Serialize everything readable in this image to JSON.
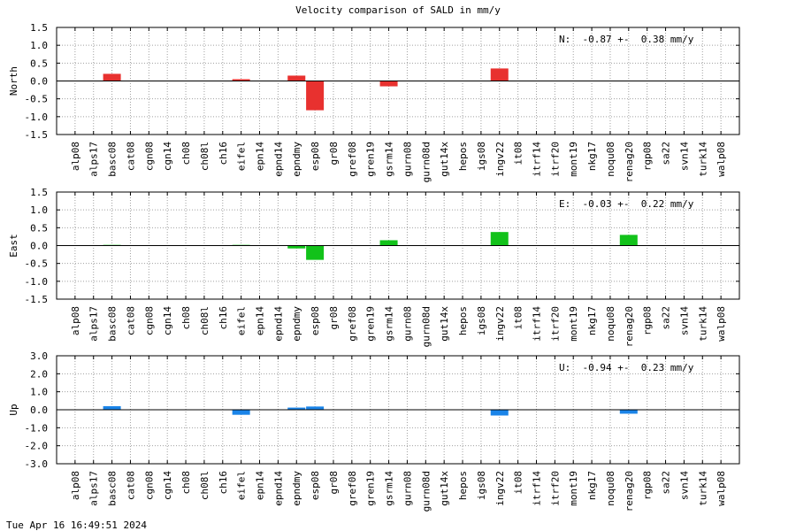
{
  "title": "Velocity comparison of SALD in mm/y",
  "timestamp": "Tue Apr 16 16:49:51 2024",
  "colors": {
    "North": "#e8312f",
    "East": "#12c21a",
    "Up": "#1a84e8"
  },
  "chart_data": [
    {
      "type": "bar",
      "ylabel": "North",
      "ylim": [
        -1.5,
        1.5
      ],
      "yticks": [
        "1.5",
        "1.0",
        "0.5",
        "0.0",
        "-0.5",
        "-1.0",
        "-1.5"
      ],
      "grid": true,
      "annotation": "N:  -0.87 +-  0.38 mm/y",
      "categories": [
        "alp08",
        "alps17",
        "basc08",
        "cat08",
        "cgn08",
        "cgn14",
        "ch08",
        "ch08l",
        "ch16",
        "eifel",
        "epn14",
        "epnd14",
        "epndmy",
        "esp08",
        "gr08",
        "gref08",
        "gren19",
        "gsrm14",
        "gurn08",
        "gurn08d",
        "gut14x",
        "hepos",
        "igs08",
        "ingv22",
        "it08",
        "itrf14",
        "itrf20",
        "mont19",
        "nkg17",
        "noqu08",
        "renag20",
        "rgp08",
        "sa22",
        "svn14",
        "turk14",
        "walp08"
      ],
      "values": [
        0,
        0,
        0.2,
        0,
        0,
        0,
        0,
        0,
        0,
        0.05,
        0,
        0,
        0.15,
        -0.82,
        0,
        0,
        0,
        -0.15,
        0,
        0,
        0,
        0,
        0,
        0.35,
        0,
        0,
        0,
        0,
        0,
        0,
        0,
        0,
        0,
        0,
        0,
        0
      ]
    },
    {
      "type": "bar",
      "ylabel": "East",
      "ylim": [
        -1.5,
        1.5
      ],
      "yticks": [
        "1.5",
        "1.0",
        "0.5",
        "0.0",
        "-0.5",
        "-1.0",
        "-1.5"
      ],
      "grid": true,
      "annotation": "E:  -0.03 +-  0.22 mm/y",
      "categories": [
        "alp08",
        "alps17",
        "basc08",
        "cat08",
        "cgn08",
        "cgn14",
        "ch08",
        "ch08l",
        "ch16",
        "eifel",
        "epn14",
        "epnd14",
        "epndmy",
        "esp08",
        "gr08",
        "gref08",
        "gren19",
        "gsrm14",
        "gurn08",
        "gurn08d",
        "gut14x",
        "hepos",
        "igs08",
        "ingv22",
        "it08",
        "itrf14",
        "itrf20",
        "mont19",
        "nkg17",
        "noqu08",
        "renag20",
        "rgp08",
        "sa22",
        "svn14",
        "turk14",
        "walp08"
      ],
      "values": [
        0,
        0,
        0.02,
        0,
        0,
        0,
        0,
        0,
        0,
        0.02,
        0,
        0,
        -0.08,
        -0.4,
        0,
        0,
        0,
        0.15,
        0,
        0,
        0,
        0,
        0,
        0.38,
        0,
        0,
        0,
        0,
        0,
        0,
        0.3,
        0,
        0,
        0,
        0,
        0
      ]
    },
    {
      "type": "bar",
      "ylabel": "Up",
      "ylim": [
        -3.0,
        3.0
      ],
      "yticks": [
        "3.0",
        "2.0",
        "1.0",
        "0.0",
        "-1.0",
        "-2.0",
        "-3.0"
      ],
      "grid": true,
      "annotation": "U:  -0.94 +-  0.23 mm/y",
      "categories": [
        "alp08",
        "alps17",
        "basc08",
        "cat08",
        "cgn08",
        "cgn14",
        "ch08",
        "ch08l",
        "ch16",
        "eifel",
        "epn14",
        "epnd14",
        "epndmy",
        "esp08",
        "gr08",
        "gref08",
        "gren19",
        "gsrm14",
        "gurn08",
        "gurn08d",
        "gut14x",
        "hepos",
        "igs08",
        "ingv22",
        "it08",
        "itrf14",
        "itrf20",
        "mont19",
        "nkg17",
        "noqu08",
        "renag20",
        "rgp08",
        "sa22",
        "svn14",
        "turk14",
        "walp08"
      ],
      "values": [
        0,
        0,
        0.2,
        0,
        0,
        0,
        0,
        0,
        0,
        -0.28,
        0,
        0,
        0.12,
        0.18,
        0,
        0,
        0,
        0,
        0,
        0,
        0,
        0,
        0,
        -0.32,
        0,
        0,
        0,
        0,
        0,
        0,
        -0.22,
        0,
        0,
        0,
        0,
        0
      ]
    }
  ]
}
